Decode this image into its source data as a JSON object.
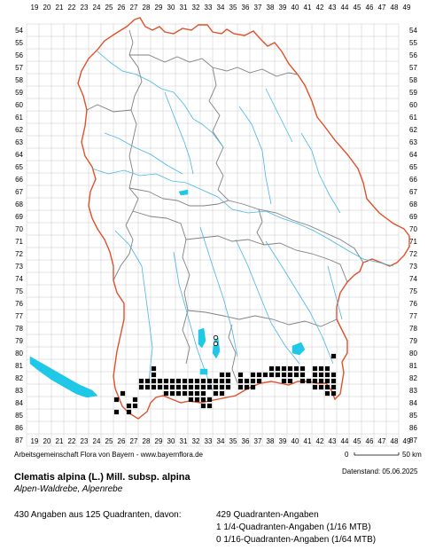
{
  "axes": {
    "x_labels": [
      "19",
      "20",
      "21",
      "22",
      "23",
      "24",
      "25",
      "26",
      "27",
      "28",
      "29",
      "30",
      "31",
      "32",
      "33",
      "34",
      "35",
      "36",
      "37",
      "38",
      "39",
      "40",
      "41",
      "42",
      "43",
      "44",
      "45",
      "46",
      "47",
      "48",
      "49"
    ],
    "y_labels": [
      "54",
      "55",
      "56",
      "57",
      "58",
      "59",
      "60",
      "61",
      "62",
      "63",
      "64",
      "65",
      "66",
      "67",
      "68",
      "69",
      "70",
      "71",
      "72",
      "73",
      "74",
      "75",
      "76",
      "77",
      "78",
      "79",
      "80",
      "81",
      "82",
      "83",
      "84",
      "85",
      "86",
      "87"
    ]
  },
  "scale": {
    "start": "0",
    "end": "50 km"
  },
  "credit": "Arbeitsgemeinschaft Flora von Bayern - www.bayernflora.de",
  "date_label": "Datenstand: 05.06.2025",
  "species": {
    "name": "Clematis alpina (L.) Mill. subsp. alpina",
    "common": "Alpen-Waldrebe, Alpenrebe"
  },
  "summary": {
    "count_line": "430 Angaben aus 125 Quadranten, davon:",
    "lines": [
      "429 Quadranten-Angaben",
      "1 1/4-Quadranten-Angaben (1/16 MTB)",
      "0 1/16-Quadranten-Angaben (1/64 MTB)"
    ]
  },
  "colors": {
    "grid": "#c8c8c8",
    "border_outer": "#e0502a",
    "border_inner": "#808080",
    "water": "#4ab4e6",
    "lake": "#1ec8e6",
    "dot": "#000000"
  },
  "records": {
    "quadrants_filled": [
      "43-80d",
      "29-81c",
      "38-81d",
      "39-81c",
      "39-81d",
      "40-81c",
      "40-81d",
      "41-81c",
      "42-81c",
      "42-81d",
      "43-81c",
      "29-82a",
      "34-82b",
      "35-82a",
      "36-82a",
      "37-82a",
      "37-82b",
      "38-82a",
      "38-82b",
      "39-82a",
      "39-82b",
      "40-82a",
      "40-82b",
      "41-82a",
      "42-82a",
      "42-82b",
      "43-82a",
      "43-82b",
      "28-82c",
      "28-82d",
      "29-82c",
      "29-82d",
      "30-82c",
      "30-82d",
      "31-82c",
      "31-82d",
      "32-82c",
      "32-82d",
      "33-82c",
      "33-82d",
      "34-82c",
      "34-82d",
      "35-82c",
      "36-82c",
      "36-82d",
      "37-82c",
      "37-82d",
      "39-82d",
      "40-82c",
      "41-82c",
      "41-82d",
      "42-82c",
      "42-82d",
      "43-82c",
      "43-82d",
      "28-83a",
      "28-83b",
      "29-83a",
      "29-83b",
      "30-83a",
      "30-83b",
      "31-83a",
      "31-83b",
      "32-83a",
      "32-83b",
      "33-83a",
      "33-83b",
      "34-83a",
      "34-83b",
      "35-83a",
      "36-83a",
      "36-83b",
      "37-83a",
      "42-83a",
      "42-83b",
      "43-83a",
      "43-83b",
      "26-83d",
      "30-83c",
      "30-83d",
      "31-83c",
      "31-83d",
      "32-83c",
      "32-83d",
      "33-83c",
      "34-83c",
      "34-83d",
      "43-83c",
      "43-83d",
      "26-84a",
      "27-84b",
      "32-84a",
      "32-84b",
      "33-84a",
      "33-84b",
      "27-84c",
      "27-84d",
      "33-84c",
      "33-84d",
      "26-85a",
      "27-85a"
    ],
    "quarter_quadrant": [
      "42-81c"
    ],
    "unconfirmed_open": [
      "34-79a",
      "34-79c"
    ]
  }
}
